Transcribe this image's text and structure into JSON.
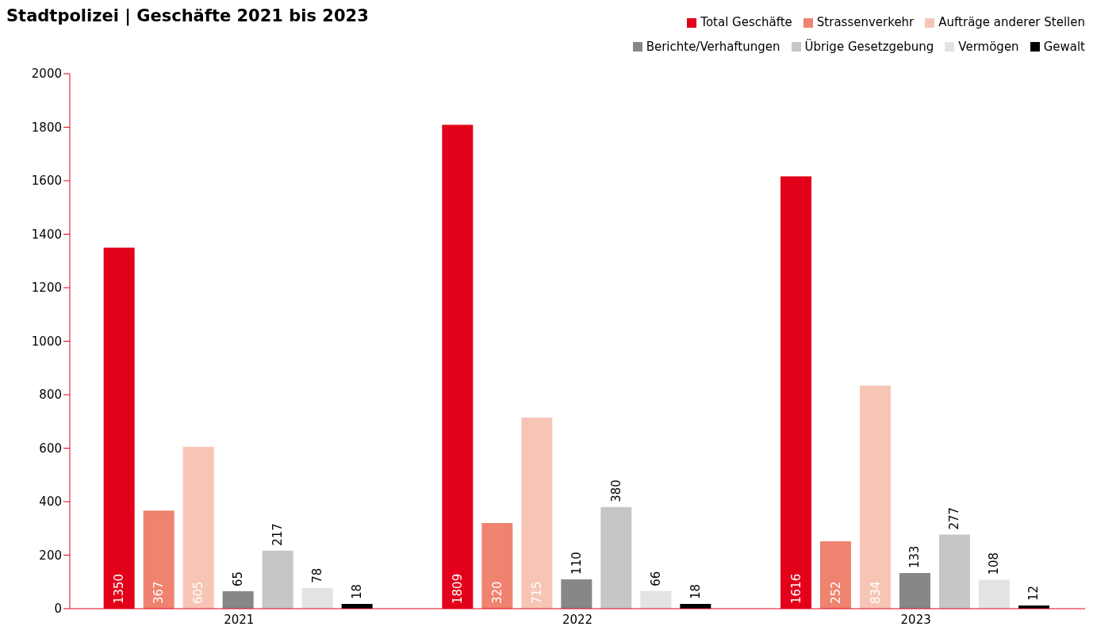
{
  "chart_data": {
    "type": "bar",
    "title": "Stadtpolizei | Geschäfte 2021 bis 2023",
    "categories": [
      "2021",
      "2022",
      "2023"
    ],
    "series": [
      {
        "name": "Total Geschäfte",
        "color": "#e2001a",
        "values": [
          1350,
          1809,
          1616
        ]
      },
      {
        "name": "Strassenverkehr",
        "color": "#ef836f",
        "values": [
          367,
          320,
          252
        ]
      },
      {
        "name": "Aufträge anderer Stellen",
        "color": "#f7c5b5",
        "values": [
          605,
          715,
          834
        ]
      },
      {
        "name": "Berichte/Verhaftungen",
        "color": "#878787",
        "values": [
          65,
          110,
          133
        ]
      },
      {
        "name": "Übrige Gesetzgebung",
        "color": "#c6c6c6",
        "values": [
          217,
          380,
          277
        ]
      },
      {
        "name": "Vermögen",
        "color": "#e3e3e3",
        "values": [
          78,
          66,
          108
        ]
      },
      {
        "name": "Gewalt",
        "color": "#000000",
        "values": [
          18,
          18,
          12
        ]
      }
    ],
    "ylim": [
      0,
      2000
    ],
    "yticks": [
      0,
      200,
      400,
      600,
      800,
      1000,
      1200,
      1400,
      1600,
      1800,
      2000
    ],
    "grid": false,
    "legend": "top right",
    "data_labels": true
  }
}
